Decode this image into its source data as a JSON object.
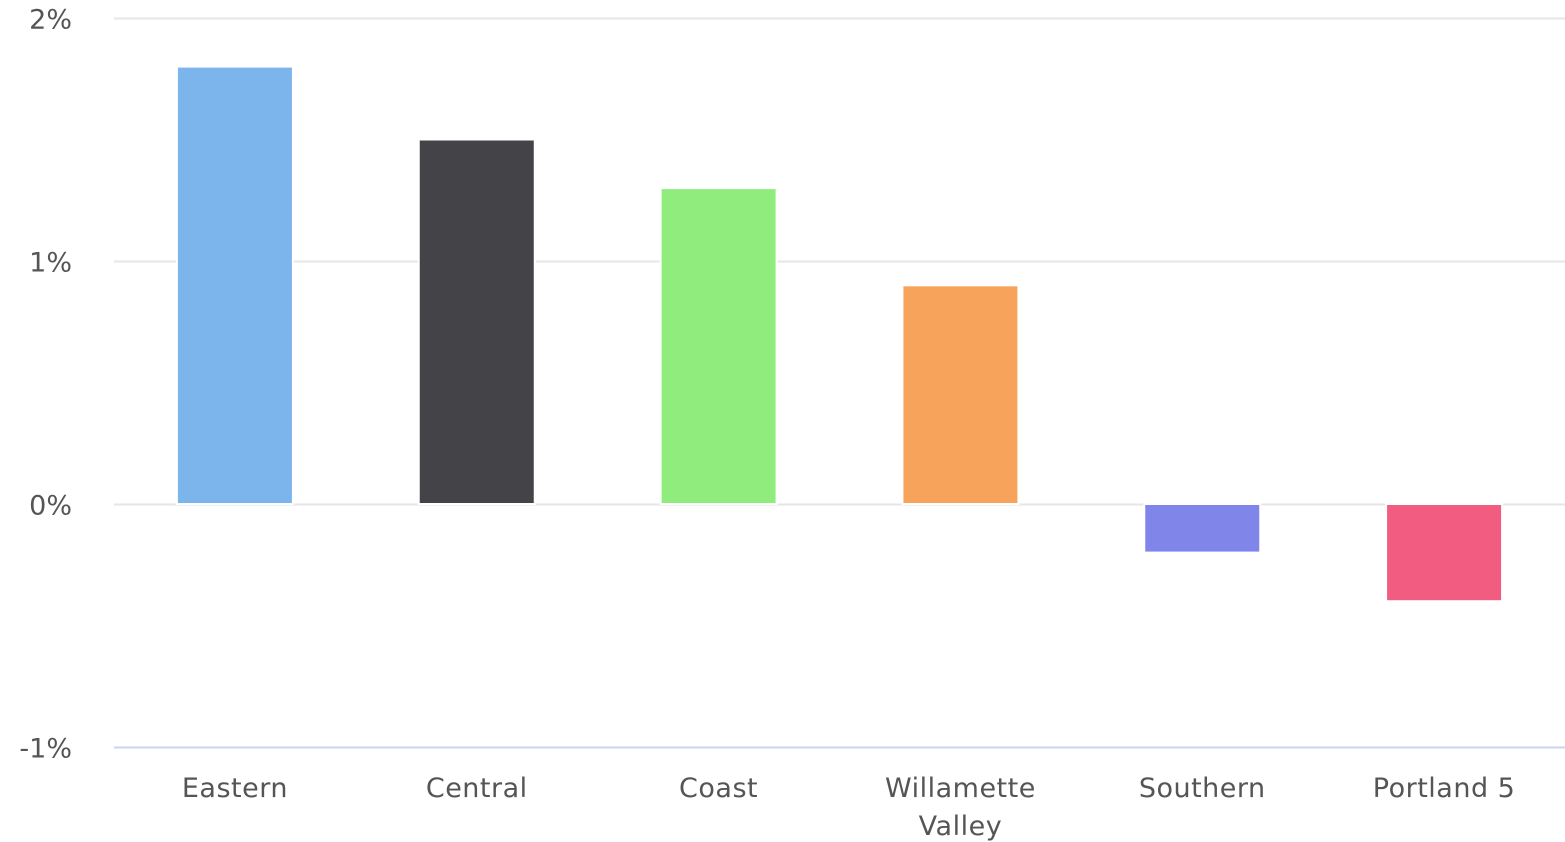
{
  "chart_data": {
    "type": "bar",
    "title": "",
    "xlabel": "",
    "ylabel": "",
    "categories": [
      "Eastern",
      "Central",
      "Coast",
      "Willamette Valley",
      "Southern",
      "Portland 5"
    ],
    "category_label_lines": [
      [
        "Eastern"
      ],
      [
        "Central"
      ],
      [
        "Coast"
      ],
      [
        "Willamette",
        "Valley"
      ],
      [
        "Southern"
      ],
      [
        "Portland 5"
      ]
    ],
    "values": [
      1.8,
      1.5,
      1.3,
      0.9,
      -0.2,
      -0.4
    ],
    "value_unit": "%",
    "bar_colors": [
      "#7cb5ec",
      "#434348",
      "#90ed7d",
      "#f7a35c",
      "#8085e9",
      "#f15c80"
    ],
    "ylim": [
      -1,
      2
    ],
    "yticks": [
      2,
      1,
      0,
      -1
    ],
    "ytick_labels": [
      "2%",
      "1%",
      "0%",
      "-1%"
    ],
    "grid": true,
    "legend": "none"
  },
  "colors": {
    "gridline": "#e6e6e6",
    "axis_line": "#ccd6eb",
    "label_text": "#555555"
  }
}
